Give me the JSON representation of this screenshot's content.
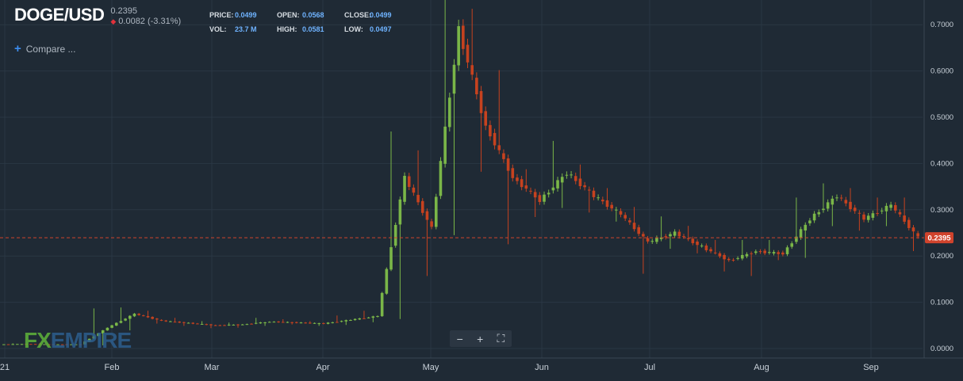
{
  "header": {
    "symbol": "DOGE/USD",
    "last_price": "0.2395",
    "change": "0.0082 (-3.31%)",
    "change_icon": "down-triangle-icon"
  },
  "stats": [
    {
      "key": "PRICE:",
      "value": "0.0499"
    },
    {
      "key": "OPEN:",
      "value": "0.0568"
    },
    {
      "key": "CLOSE:",
      "value": "0.0499"
    },
    {
      "key": "VOL:",
      "value": "23.7 M"
    },
    {
      "key": "HIGH:",
      "value": "0.0581"
    },
    {
      "key": "LOW:",
      "value": "0.0497"
    }
  ],
  "compare": {
    "label": "Compare ..."
  },
  "watermark": {
    "fx": "FX",
    "rest": "EMPIRE"
  },
  "zoom_controls": {
    "minus": "−",
    "plus": "+",
    "fullscreen": "⛶"
  },
  "colors": {
    "up": "#7ab648",
    "down": "#c6421f",
    "grid": "#2a3744",
    "background": "#1f2a35",
    "price_line": "#d0432c"
  },
  "chart_data": {
    "type": "candlestick",
    "x_ticks": [
      "21",
      "Feb",
      "Mar",
      "Apr",
      "May",
      "Jun",
      "Jul",
      "Aug",
      "Sep"
    ],
    "y_ticks": [
      "0.0000",
      "0.1000",
      "0.2000",
      "0.3000",
      "0.4000",
      "0.5000",
      "0.6000",
      "0.7000"
    ],
    "ylim": [
      0,
      0.75
    ],
    "current_price": "0.2395",
    "grid": true,
    "weekly_candles": [
      {
        "week": "Jan wk1",
        "open": 0.009,
        "high": 0.011,
        "low": 0.008,
        "close": 0.01
      },
      {
        "week": "Jan wk2",
        "open": 0.01,
        "high": 0.012,
        "low": 0.008,
        "close": 0.009
      },
      {
        "week": "Jan wk3",
        "open": 0.009,
        "high": 0.01,
        "low": 0.008,
        "close": 0.009
      },
      {
        "week": "Jan wk4",
        "open": 0.009,
        "high": 0.085,
        "low": 0.007,
        "close": 0.045
      },
      {
        "week": "Feb wk1",
        "open": 0.045,
        "high": 0.087,
        "low": 0.04,
        "close": 0.075
      },
      {
        "week": "Feb wk2",
        "open": 0.075,
        "high": 0.08,
        "low": 0.055,
        "close": 0.06
      },
      {
        "week": "Feb wk3",
        "open": 0.06,
        "high": 0.065,
        "low": 0.05,
        "close": 0.055
      },
      {
        "week": "Feb wk4",
        "open": 0.055,
        "high": 0.058,
        "low": 0.045,
        "close": 0.05
      },
      {
        "week": "Mar wk1",
        "open": 0.05,
        "high": 0.055,
        "low": 0.046,
        "close": 0.052
      },
      {
        "week": "Mar wk2",
        "open": 0.052,
        "high": 0.065,
        "low": 0.05,
        "close": 0.058
      },
      {
        "week": "Mar wk3",
        "open": 0.058,
        "high": 0.062,
        "low": 0.053,
        "close": 0.056
      },
      {
        "week": "Mar wk4",
        "open": 0.056,
        "high": 0.058,
        "low": 0.05,
        "close": 0.054
      },
      {
        "week": "Apr wk1",
        "open": 0.054,
        "high": 0.07,
        "low": 0.052,
        "close": 0.062
      },
      {
        "week": "Apr wk2",
        "open": 0.062,
        "high": 0.08,
        "low": 0.058,
        "close": 0.07
      },
      {
        "week": "Apr wk3",
        "open": 0.07,
        "high": 0.46,
        "low": 0.065,
        "close": 0.37
      },
      {
        "week": "Apr wk4",
        "open": 0.37,
        "high": 0.42,
        "low": 0.16,
        "close": 0.26
      },
      {
        "week": "May wk1",
        "open": 0.26,
        "high": 0.74,
        "low": 0.25,
        "close": 0.69
      },
      {
        "week": "May wk2",
        "open": 0.69,
        "high": 0.72,
        "low": 0.39,
        "close": 0.48
      },
      {
        "week": "May wk3",
        "open": 0.48,
        "high": 0.59,
        "low": 0.23,
        "close": 0.37
      },
      {
        "week": "May wk4",
        "open": 0.37,
        "high": 0.38,
        "low": 0.29,
        "close": 0.32
      },
      {
        "week": "Jun wk1",
        "open": 0.32,
        "high": 0.44,
        "low": 0.31,
        "close": 0.38
      },
      {
        "week": "Jun wk2",
        "open": 0.38,
        "high": 0.39,
        "low": 0.3,
        "close": 0.33
      },
      {
        "week": "Jun wk3",
        "open": 0.33,
        "high": 0.34,
        "low": 0.28,
        "close": 0.29
      },
      {
        "week": "Jun wk4",
        "open": 0.29,
        "high": 0.3,
        "low": 0.165,
        "close": 0.23
      },
      {
        "week": "Jul wk1",
        "open": 0.23,
        "high": 0.28,
        "low": 0.22,
        "close": 0.25
      },
      {
        "week": "Jul wk2",
        "open": 0.25,
        "high": 0.26,
        "low": 0.21,
        "close": 0.22
      },
      {
        "week": "Jul wk3",
        "open": 0.22,
        "high": 0.23,
        "low": 0.17,
        "close": 0.19
      },
      {
        "week": "Jul wk4",
        "open": 0.19,
        "high": 0.23,
        "low": 0.16,
        "close": 0.21
      },
      {
        "week": "Aug wk1",
        "open": 0.21,
        "high": 0.23,
        "low": 0.195,
        "close": 0.205
      },
      {
        "week": "Aug wk2",
        "open": 0.205,
        "high": 0.32,
        "low": 0.2,
        "close": 0.28
      },
      {
        "week": "Aug wk3",
        "open": 0.28,
        "high": 0.35,
        "low": 0.27,
        "close": 0.33
      },
      {
        "week": "Aug wk4",
        "open": 0.33,
        "high": 0.34,
        "low": 0.26,
        "close": 0.28
      },
      {
        "week": "Sep wk1",
        "open": 0.28,
        "high": 0.32,
        "low": 0.27,
        "close": 0.31
      },
      {
        "week": "Sep wk2",
        "open": 0.31,
        "high": 0.32,
        "low": 0.215,
        "close": 0.24
      }
    ]
  }
}
